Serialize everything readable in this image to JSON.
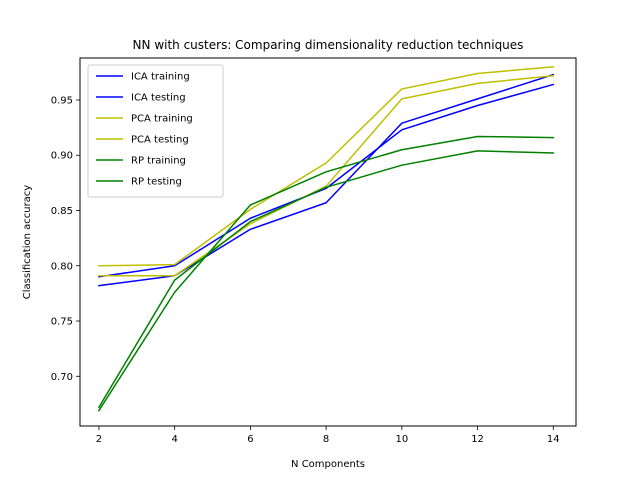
{
  "chart_data": {
    "type": "line",
    "title": "NN with custers: Comparing dimensionality reduction techniques",
    "xlabel": "N Components",
    "ylabel": "Classification accuracy",
    "x": [
      2,
      4,
      6,
      8,
      10,
      12,
      14
    ],
    "xlim": [
      1.5,
      14.6
    ],
    "ylim": [
      0.655,
      0.988
    ],
    "xticks": [
      2,
      4,
      6,
      8,
      10,
      12,
      14
    ],
    "yticks": [
      0.7,
      0.75,
      0.8,
      0.85,
      0.9,
      0.95
    ],
    "ytick_labels": [
      "0.70",
      "0.75",
      "0.80",
      "0.85",
      "0.90",
      "0.95"
    ],
    "legend_position": "upper-left",
    "grid": false,
    "series": [
      {
        "name": "ICA training",
        "color": "#0000ff",
        "values": [
          0.782,
          0.791,
          0.833,
          0.857,
          0.929,
          0.951,
          0.973
        ]
      },
      {
        "name": "ICA testing",
        "color": "#0000ff",
        "values": [
          0.79,
          0.8,
          0.843,
          0.87,
          0.923,
          0.945,
          0.964
        ]
      },
      {
        "name": "PCA training",
        "color": "#bfbf00",
        "values": [
          0.8,
          0.801,
          0.851,
          0.893,
          0.96,
          0.974,
          0.98
        ]
      },
      {
        "name": "PCA testing",
        "color": "#bfbf00",
        "values": [
          0.791,
          0.791,
          0.838,
          0.872,
          0.951,
          0.965,
          0.972
        ]
      },
      {
        "name": "RP training",
        "color": "#008000",
        "values": [
          0.669,
          0.776,
          0.855,
          0.885,
          0.905,
          0.917,
          0.916
        ]
      },
      {
        "name": "RP testing",
        "color": "#008000",
        "values": [
          0.672,
          0.787,
          0.84,
          0.871,
          0.891,
          0.904,
          0.902
        ]
      }
    ]
  }
}
